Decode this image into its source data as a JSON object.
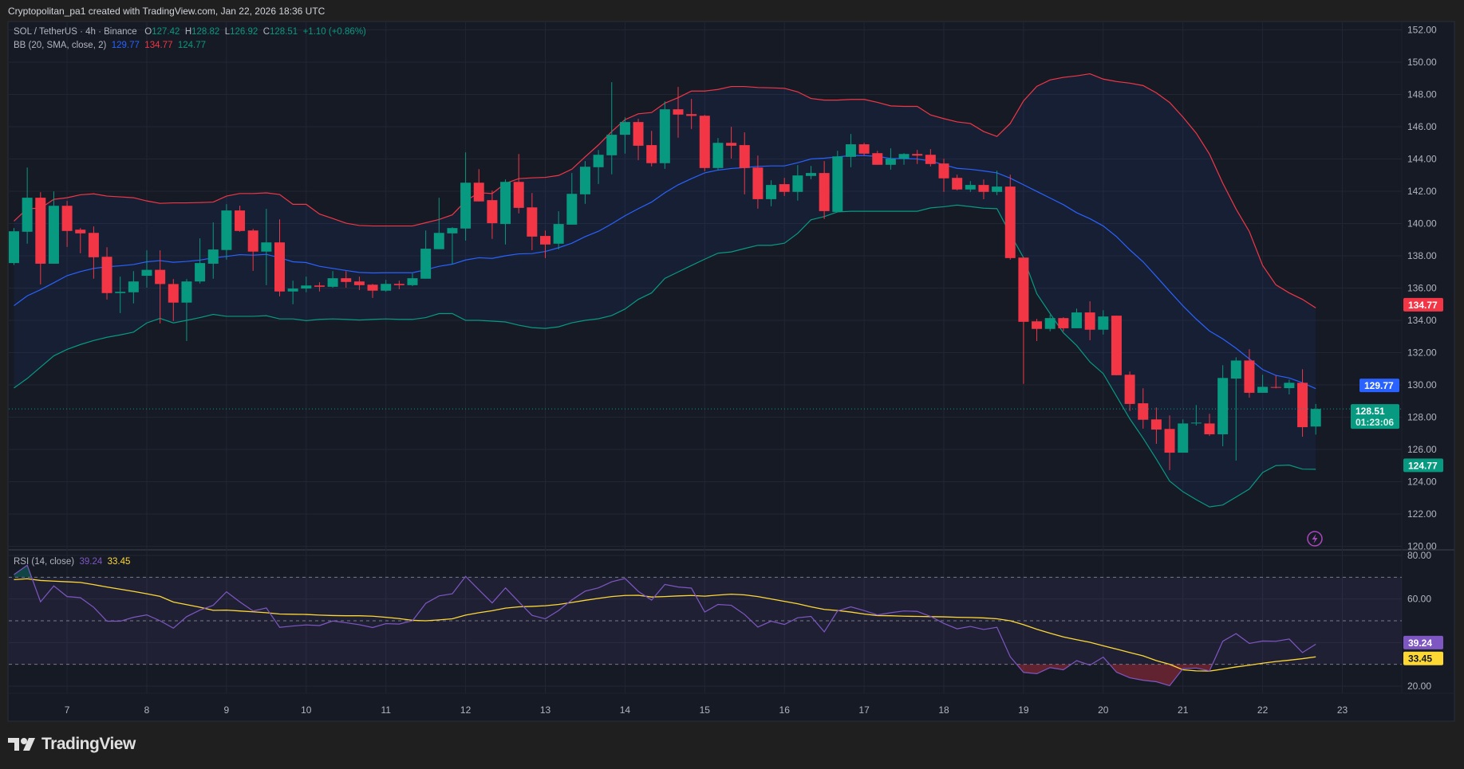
{
  "header": {
    "attribution": "Cryptopolitan_pa1 created with TradingView.com, Jan 22, 2026 18:36 UTC"
  },
  "legend": {
    "symbol": "SOL / TetherUS · 4h · Binance",
    "o_label": "O",
    "o": "127.42",
    "h_label": "H",
    "h": "128.82",
    "l_label": "L",
    "l": "126.92",
    "c_label": "C",
    "c": "128.51",
    "change": "+1.10 (+0.86%)",
    "bb_label": "BB (20, SMA, close, 2)",
    "bb_basis": "129.77",
    "bb_upper": "134.77",
    "bb_lower": "124.77",
    "rsi_label": "RSI (14, close)",
    "rsi": "39.24",
    "rsi_ma": "33.45"
  },
  "price_tags": {
    "upper": "134.77",
    "basis": "129.77",
    "close": "128.51",
    "countdown": "01:23:06",
    "lower": "124.77",
    "rsi": "39.24",
    "rsi_ma": "33.45"
  },
  "branding": {
    "logo_text": "TradingView"
  },
  "icons": {
    "alert": "lightning-icon",
    "logo": "tradingview-logo-icon"
  },
  "colors": {
    "up": "#089981",
    "down": "#f23645",
    "bb_basis": "#2962ff",
    "bb_upper": "#f23645",
    "bb_lower": "#089981",
    "rsi": "#7e57c2",
    "rsi_ma": "#fdd835",
    "background": "#161a25"
  },
  "chart_data": [
    {
      "type": "candlestick",
      "interval": "4h",
      "x_ticks": [
        "7",
        "8",
        "9",
        "10",
        "11",
        "12",
        "13",
        "14",
        "15",
        "16",
        "17",
        "18",
        "19",
        "20",
        "21",
        "22",
        "23"
      ],
      "y_ticks": [
        "152.00",
        "150.00",
        "148.00",
        "146.00",
        "144.00",
        "142.00",
        "140.00",
        "138.00",
        "136.00",
        "134.00",
        "132.00",
        "130.00",
        "128.00",
        "126.00",
        "124.00",
        "122.00",
        "120.00"
      ],
      "ylim": [
        120,
        152
      ],
      "grid": true,
      "ohlc": [
        [
          137.55,
          139.72,
          137.43,
          139.52
        ],
        [
          139.49,
          143.47,
          138.75,
          141.6
        ],
        [
          141.6,
          141.94,
          136.23,
          137.51
        ],
        [
          137.51,
          141.99,
          137.51,
          141.1
        ],
        [
          141.1,
          141.4,
          138.55,
          139.54
        ],
        [
          139.62,
          139.72,
          138.16,
          139.39
        ],
        [
          139.42,
          139.82,
          136.58,
          137.91
        ],
        [
          137.94,
          138.53,
          135.29,
          135.69
        ],
        [
          135.69,
          136.71,
          134.45,
          135.77
        ],
        [
          135.74,
          137.05,
          135.05,
          136.41
        ],
        [
          136.76,
          138.34,
          136.03,
          137.13
        ],
        [
          137.13,
          138.34,
          133.81,
          136.25
        ],
        [
          136.25,
          136.56,
          133.96,
          135.1
        ],
        [
          135.1,
          136.56,
          132.72,
          136.41
        ],
        [
          136.41,
          139.08,
          136.28,
          137.55
        ],
        [
          137.51,
          140.07,
          136.58,
          138.39
        ],
        [
          138.36,
          141.2,
          137.76,
          140.81
        ],
        [
          140.81,
          141.1,
          139.49,
          139.54
        ],
        [
          139.57,
          139.67,
          137.07,
          138.26
        ],
        [
          138.26,
          140.91,
          136.18,
          138.83
        ],
        [
          138.83,
          140.26,
          135.49,
          135.79
        ],
        [
          135.79,
          136.46,
          135.0,
          135.97
        ],
        [
          135.97,
          136.71,
          135.74,
          136.16
        ],
        [
          136.16,
          136.36,
          135.79,
          136.08
        ],
        [
          136.08,
          137.05,
          136.02,
          136.61
        ],
        [
          136.61,
          137.05,
          136.02,
          136.38
        ],
        [
          136.41,
          136.71,
          135.88,
          136.18
        ],
        [
          136.21,
          136.26,
          135.39,
          135.84
        ],
        [
          135.84,
          136.51,
          135.77,
          136.26
        ],
        [
          136.26,
          136.46,
          135.93,
          136.18
        ],
        [
          136.18,
          136.91,
          136.12,
          136.61
        ],
        [
          136.58,
          139.57,
          136.58,
          138.44
        ],
        [
          138.41,
          141.6,
          138.41,
          139.42
        ],
        [
          139.39,
          139.77,
          137.48,
          139.72
        ],
        [
          139.69,
          144.41,
          138.94,
          142.53
        ],
        [
          142.53,
          143.37,
          141.37,
          141.37
        ],
        [
          141.45,
          142.04,
          139.05,
          140.02
        ],
        [
          139.97,
          142.73,
          138.7,
          142.58
        ],
        [
          142.58,
          144.31,
          140.63,
          140.97
        ],
        [
          141.0,
          141.89,
          138.35,
          139.19
        ],
        [
          139.23,
          139.57,
          137.86,
          138.7
        ],
        [
          138.75,
          140.76,
          138.4,
          139.97
        ],
        [
          139.93,
          143.13,
          139.93,
          141.84
        ],
        [
          141.81,
          143.87,
          141.22,
          143.52
        ],
        [
          143.49,
          144.56,
          142.45,
          144.26
        ],
        [
          144.23,
          148.76,
          143.05,
          145.5
        ],
        [
          145.5,
          146.58,
          144.33,
          146.29
        ],
        [
          146.29,
          146.49,
          143.93,
          144.82
        ],
        [
          144.86,
          145.74,
          143.54,
          143.74
        ],
        [
          143.74,
          147.57,
          143.39,
          147.08
        ],
        [
          147.08,
          148.46,
          145.32,
          146.75
        ],
        [
          146.78,
          147.72,
          145.86,
          146.67
        ],
        [
          146.68,
          146.73,
          143.24,
          143.44
        ],
        [
          143.44,
          145.3,
          143.29,
          145.0
        ],
        [
          145.0,
          145.99,
          144.03,
          144.82
        ],
        [
          144.86,
          145.65,
          141.81,
          143.44
        ],
        [
          143.47,
          144.21,
          140.92,
          141.51
        ],
        [
          141.51,
          142.68,
          141.07,
          142.39
        ],
        [
          142.44,
          142.83,
          141.71,
          141.96
        ],
        [
          141.96,
          143.62,
          141.42,
          142.98
        ],
        [
          142.95,
          143.57,
          142.75,
          143.13
        ],
        [
          143.13,
          143.87,
          140.28,
          140.77
        ],
        [
          140.72,
          144.51,
          140.72,
          144.16
        ],
        [
          144.13,
          145.55,
          143.49,
          144.91
        ],
        [
          144.91,
          145.0,
          144.21,
          144.33
        ],
        [
          144.36,
          144.51,
          143.64,
          143.64
        ],
        [
          143.64,
          144.66,
          143.34,
          144.02
        ],
        [
          144.02,
          144.36,
          143.64,
          144.31
        ],
        [
          144.31,
          144.56,
          143.69,
          144.21
        ],
        [
          144.26,
          144.61,
          143.54,
          143.69
        ],
        [
          143.72,
          144.02,
          141.96,
          142.8
        ],
        [
          142.83,
          143.03,
          142.06,
          142.11
        ],
        [
          142.11,
          142.63,
          141.96,
          142.39
        ],
        [
          142.39,
          142.73,
          141.51,
          141.96
        ],
        [
          141.96,
          143.28,
          141.76,
          142.29
        ],
        [
          142.29,
          143.03,
          137.76,
          137.86
        ],
        [
          137.89,
          137.89,
          130.06,
          133.91
        ],
        [
          133.94,
          134.09,
          132.72,
          133.47
        ],
        [
          133.47,
          134.34,
          133.32,
          134.14
        ],
        [
          134.14,
          134.19,
          133.32,
          133.51
        ],
        [
          133.51,
          134.73,
          133.51,
          134.49
        ],
        [
          134.49,
          135.18,
          132.77,
          133.42
        ],
        [
          133.42,
          134.63,
          133.12,
          134.24
        ],
        [
          134.29,
          134.29,
          130.6,
          130.6
        ],
        [
          130.63,
          130.83,
          128.38,
          128.82
        ],
        [
          128.86,
          129.79,
          127.29,
          127.84
        ],
        [
          127.86,
          128.6,
          126.35,
          127.23
        ],
        [
          127.27,
          128.11,
          124.72,
          125.8
        ],
        [
          125.8,
          127.86,
          125.8,
          127.61
        ],
        [
          127.63,
          128.75,
          127.48,
          127.66
        ],
        [
          127.61,
          128.21,
          126.84,
          126.94
        ],
        [
          126.94,
          131.22,
          126.2,
          130.43
        ],
        [
          130.39,
          131.71,
          125.31,
          131.51
        ],
        [
          131.51,
          132.21,
          129.21,
          129.51
        ],
        [
          129.51,
          130.63,
          129.51,
          129.88
        ],
        [
          129.87,
          130.58,
          129.79,
          129.84
        ],
        [
          129.8,
          130.33,
          129.41,
          130.13
        ],
        [
          130.13,
          130.97,
          126.79,
          127.38
        ],
        [
          127.42,
          128.82,
          126.92,
          128.51
        ]
      ],
      "bollinger": {
        "upper": [
          140.15,
          140.92,
          140.95,
          141.5,
          141.6,
          141.78,
          141.84,
          141.7,
          141.65,
          141.6,
          141.4,
          141.25,
          141.28,
          141.28,
          141.3,
          141.33,
          141.7,
          141.86,
          141.86,
          141.9,
          141.8,
          141.19,
          141.19,
          140.59,
          140.31,
          140.02,
          139.88,
          139.85,
          139.85,
          139.85,
          139.85,
          140.05,
          140.25,
          140.54,
          141.4,
          141.91,
          141.86,
          142.49,
          142.78,
          142.83,
          142.86,
          142.98,
          143.37,
          144.13,
          144.87,
          145.7,
          146.44,
          146.8,
          146.88,
          147.46,
          147.8,
          148.21,
          148.21,
          148.31,
          148.49,
          148.49,
          148.43,
          148.41,
          148.38,
          148.16,
          147.75,
          147.65,
          147.65,
          147.69,
          147.69,
          147.51,
          147.29,
          147.26,
          147.26,
          146.73,
          146.5,
          146.3,
          146.2,
          145.7,
          145.4,
          146.2,
          147.6,
          148.5,
          148.9,
          149.06,
          149.15,
          149.28,
          148.95,
          148.8,
          148.7,
          148.55,
          148.1,
          147.5,
          146.6,
          145.6,
          144.3,
          142.5,
          140.9,
          139.5,
          137.4,
          136.2,
          135.7,
          135.3,
          134.77
        ],
        "basis": [
          134.91,
          135.52,
          135.9,
          136.33,
          136.77,
          137.02,
          137.22,
          137.32,
          137.38,
          137.46,
          137.63,
          137.7,
          137.6,
          137.65,
          137.73,
          137.88,
          137.96,
          138.07,
          138.04,
          138.09,
          137.88,
          137.63,
          137.58,
          137.35,
          137.22,
          137.09,
          136.97,
          136.94,
          136.95,
          136.95,
          136.95,
          137.14,
          137.35,
          137.48,
          137.74,
          137.88,
          137.84,
          138.0,
          138.12,
          138.14,
          138.27,
          138.5,
          138.78,
          139.19,
          139.52,
          139.98,
          140.48,
          140.92,
          141.33,
          141.91,
          142.4,
          142.78,
          143.14,
          143.31,
          143.41,
          143.47,
          143.54,
          143.57,
          143.57,
          143.77,
          144.0,
          144.05,
          144.13,
          144.21,
          144.21,
          144.16,
          144.03,
          144.02,
          144.0,
          143.88,
          143.64,
          143.42,
          143.36,
          143.26,
          143.14,
          142.81,
          142.4,
          141.99,
          141.58,
          141.17,
          140.67,
          140.3,
          139.85,
          139.19,
          138.37,
          137.63,
          136.72,
          135.8,
          134.9,
          134.08,
          133.34,
          132.85,
          132.27,
          131.61,
          130.95,
          130.59,
          130.43,
          130.13,
          129.77
        ],
        "lower": [
          129.81,
          130.4,
          131.1,
          131.8,
          132.2,
          132.5,
          132.75,
          132.95,
          133.1,
          133.27,
          133.84,
          134.12,
          133.84,
          134.0,
          134.17,
          134.37,
          134.25,
          134.25,
          134.25,
          134.29,
          134.09,
          134.09,
          133.98,
          134.06,
          134.09,
          134.06,
          134.02,
          134.06,
          134.09,
          134.06,
          134.06,
          134.17,
          134.42,
          134.42,
          134.0,
          134.0,
          133.95,
          133.9,
          133.7,
          133.55,
          133.5,
          133.6,
          133.85,
          134.0,
          134.1,
          134.3,
          134.7,
          135.3,
          135.7,
          136.6,
          137.0,
          137.4,
          137.79,
          138.16,
          138.24,
          138.45,
          138.65,
          138.65,
          138.78,
          139.39,
          140.23,
          140.43,
          140.72,
          140.76,
          140.76,
          140.76,
          140.76,
          140.76,
          140.76,
          140.97,
          141.04,
          141.14,
          141.05,
          140.95,
          140.92,
          139.36,
          137.88,
          135.65,
          134.42,
          133.23,
          132.44,
          131.42,
          130.7,
          129.3,
          127.9,
          126.7,
          125.4,
          124.04,
          123.38,
          122.89,
          122.44,
          122.56,
          123.05,
          123.55,
          124.57,
          125.0,
          125.03,
          124.78,
          124.77
        ]
      },
      "last_close": 128.51
    },
    {
      "type": "line",
      "y_ticks": [
        "80.00",
        "60.00",
        "20.00"
      ],
      "ylim": [
        15,
        83
      ],
      "bands": [
        70,
        50,
        30
      ],
      "rsi": [
        71.2,
        75.5,
        58.7,
        66.0,
        61.1,
        60.6,
        56.2,
        49.8,
        49.8,
        51.6,
        52.7,
        50.0,
        46.6,
        51.9,
        54.9,
        57.1,
        63.3,
        58.7,
        54.5,
        55.9,
        47.0,
        47.6,
        48.1,
        47.8,
        49.9,
        49.1,
        48.2,
        46.9,
        48.7,
        48.5,
        50.0,
        58.0,
        61.4,
        62.4,
        70.4,
        64.2,
        58.2,
        65.1,
        58.7,
        52.5,
        50.9,
        54.7,
        59.6,
        63.6,
        65.1,
        67.9,
        69.4,
        63.5,
        59.5,
        66.7,
        65.5,
        65.0,
        54.0,
        57.5,
        57.1,
        52.9,
        47.1,
        49.8,
        48.3,
        51.4,
        52.0,
        44.9,
        54.5,
        56.4,
        54.7,
        52.7,
        53.7,
        54.5,
        54.3,
        52.0,
        48.8,
        46.3,
        47.4,
        46.0,
        47.0,
        33.5,
        26.3,
        25.7,
        28.5,
        27.5,
        31.7,
        29.6,
        33.3,
        26.4,
        23.8,
        22.7,
        22.0,
        20.2,
        28.0,
        28.3,
        27.0,
        40.6,
        44.1,
        39.6,
        40.7,
        40.6,
        41.6,
        35.4,
        39.24
      ],
      "rsi_ma": [
        68.9,
        69.3,
        68.5,
        68.2,
        67.9,
        67.6,
        66.6,
        65.5,
        64.5,
        63.5,
        62.4,
        61.2,
        58.6,
        57.4,
        56.2,
        54.8,
        54.9,
        54.5,
        54.1,
        53.7,
        53.1,
        53.0,
        52.9,
        52.6,
        52.4,
        52.3,
        52.3,
        52.1,
        51.6,
        51.0,
        50.2,
        50.0,
        50.4,
        50.9,
        52.6,
        53.7,
        54.6,
        55.8,
        56.4,
        56.6,
        56.9,
        57.5,
        58.4,
        59.4,
        60.3,
        61.1,
        61.6,
        61.7,
        60.9,
        61.1,
        61.4,
        61.6,
        61.3,
        61.8,
        62.2,
        61.9,
        61.1,
        60.0,
        58.9,
        57.8,
        56.4,
        55.2,
        54.7,
        54.0,
        53.1,
        52.4,
        52.3,
        52.1,
        52.0,
        51.9,
        51.8,
        51.6,
        51.5,
        51.3,
        50.9,
        50.0,
        48.2,
        46.1,
        44.3,
        42.6,
        41.3,
        40.1,
        38.5,
        37.0,
        35.4,
        33.9,
        31.7,
        30.0,
        27.5,
        27.0,
        26.9,
        27.8,
        28.8,
        29.6,
        30.5,
        31.3,
        31.9,
        32.6,
        33.45
      ]
    }
  ]
}
